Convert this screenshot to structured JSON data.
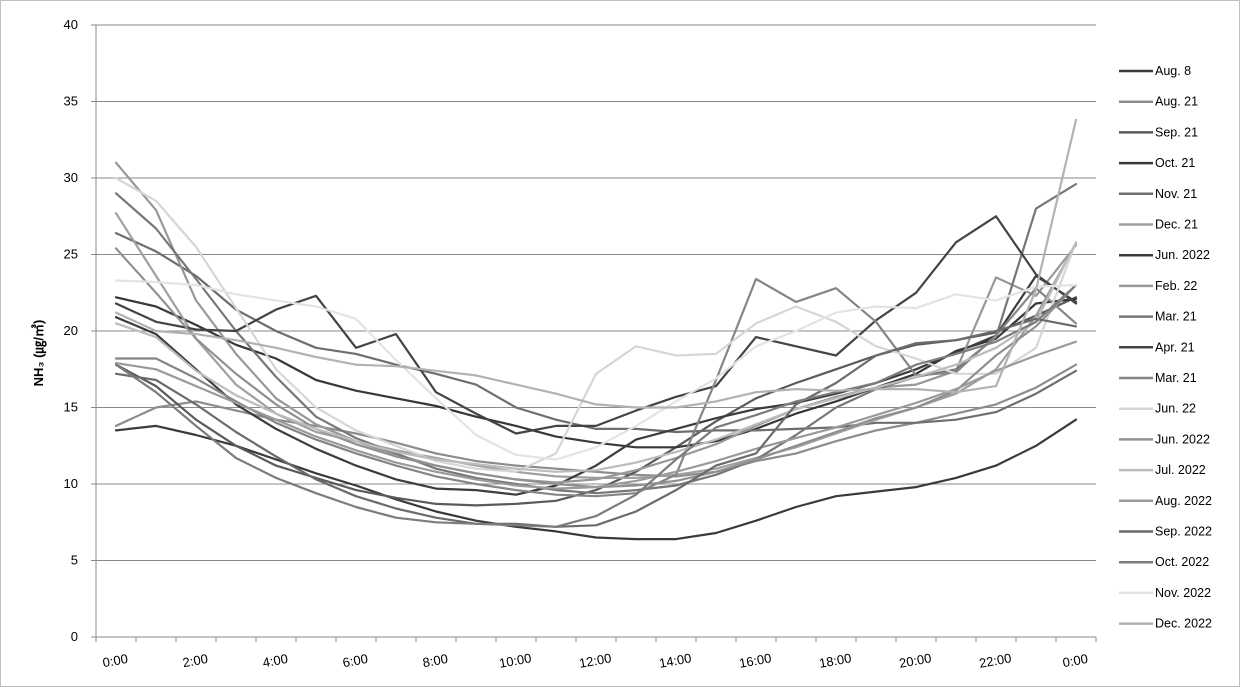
{
  "chart_data": {
    "type": "line",
    "title": "",
    "xlabel": "",
    "ylabel": "NH₃ (㎍/㎥)",
    "ylim": [
      0,
      40
    ],
    "y_ticks": [
      "0",
      "5",
      "10",
      "15",
      "20",
      "25",
      "30",
      "35",
      "40"
    ],
    "x_tick_labels": [
      "0:00",
      "2:00",
      "4:00",
      "6:00",
      "8:00",
      "10:00",
      "12:00",
      "14:00",
      "16:00",
      "18:00",
      "20:00",
      "22:00",
      "0:00"
    ],
    "x": [
      "0:00",
      "1:00",
      "2:00",
      "3:00",
      "4:00",
      "5:00",
      "6:00",
      "7:00",
      "8:00",
      "9:00",
      "10:00",
      "11:00",
      "12:00",
      "13:00",
      "14:00",
      "15:00",
      "16:00",
      "17:00",
      "18:00",
      "19:00",
      "20:00",
      "21:00",
      "22:00",
      "23:00",
      "0:00"
    ],
    "grid": "horizontal",
    "legend_position": "right",
    "series": [
      {
        "name": "Aug. 8",
        "color": "#3a3a3a",
        "values": [
          13.5,
          13.8,
          13.2,
          12.5,
          11.6,
          10.7,
          9.9,
          9.0,
          8.2,
          7.6,
          7.2,
          6.9,
          6.5,
          6.4,
          6.4,
          6.8,
          7.6,
          8.5,
          9.2,
          9.5,
          9.8,
          10.4,
          11.2,
          12.5,
          14.2
        ]
      },
      {
        "name": "Aug. 21",
        "color": "#8c8c8c",
        "values": [
          13.8,
          15.0,
          15.4,
          14.8,
          14.2,
          13.8,
          13.3,
          12.7,
          12.0,
          11.5,
          11.2,
          11.0,
          10.8,
          10.6,
          10.5,
          10.8,
          11.5,
          12.0,
          12.8,
          13.5,
          14.0,
          14.6,
          15.2,
          16.3,
          17.8
        ]
      },
      {
        "name": "Sep. 21",
        "color": "#5a5a5a",
        "values": [
          17.8,
          16.4,
          14.2,
          12.5,
          11.2,
          10.4,
          9.6,
          9.1,
          8.7,
          8.6,
          8.7,
          8.9,
          9.6,
          10.8,
          12.4,
          14.1,
          15.6,
          16.6,
          17.5,
          18.4,
          19.1,
          19.4,
          19.9,
          21.0,
          22.2
        ]
      },
      {
        "name": "Oct. 21",
        "color": "#383838",
        "values": [
          22.2,
          21.6,
          20.4,
          19.1,
          18.2,
          16.8,
          16.1,
          15.6,
          15.1,
          14.4,
          13.8,
          13.1,
          12.7,
          12.4,
          12.4,
          12.8,
          13.6,
          14.6,
          15.4,
          16.3,
          17.2,
          18.7,
          19.5,
          21.8,
          22.1
        ]
      },
      {
        "name": "Nov. 21",
        "color": "#6e6e6e",
        "values": [
          26.4,
          25.2,
          23.6,
          21.4,
          20.0,
          18.9,
          18.5,
          17.8,
          17.2,
          16.5,
          15.0,
          14.2,
          13.6,
          13.6,
          13.4,
          13.5,
          13.5,
          13.6,
          13.7,
          14.0,
          14.0,
          14.2,
          14.7,
          15.9,
          17.4
        ]
      },
      {
        "name": "Dec. 21",
        "color": "#a0a0a0",
        "values": [
          27.7,
          23.6,
          19.5,
          16.5,
          14.6,
          13.4,
          12.8,
          12.2,
          11.7,
          11.2,
          10.8,
          10.5,
          10.4,
          10.4,
          10.6,
          11.0,
          11.7,
          12.4,
          13.3,
          14.2,
          15.0,
          15.9,
          17.5,
          21.0,
          25.7
        ]
      },
      {
        "name": "Jun. 2022",
        "color": "#3c3c3c",
        "values": [
          20.9,
          19.8,
          17.5,
          15.2,
          13.6,
          12.3,
          11.2,
          10.3,
          9.7,
          9.6,
          9.3,
          9.9,
          11.2,
          12.9,
          13.6,
          14.3,
          14.9,
          15.3,
          15.9,
          16.6,
          17.5,
          18.6,
          19.7,
          23.6,
          21.9
        ]
      },
      {
        "name": "Feb. 22",
        "color": "#989898",
        "values": [
          31.0,
          27.9,
          22.0,
          18.5,
          15.6,
          13.9,
          12.8,
          11.9,
          11.2,
          10.7,
          10.3,
          10.1,
          10.3,
          10.9,
          11.7,
          12.6,
          13.8,
          14.9,
          15.7,
          16.3,
          16.5,
          17.4,
          23.5,
          22.3,
          25.6
        ]
      },
      {
        "name": "Mar. 21",
        "color": "#777777",
        "values": [
          29.0,
          26.7,
          23.4,
          20.0,
          17.0,
          14.4,
          13.0,
          12.0,
          11.0,
          10.4,
          10.0,
          9.6,
          9.4,
          9.6,
          9.9,
          10.6,
          11.6,
          13.2,
          15.0,
          16.2,
          17.0,
          17.5,
          19.6,
          28.0,
          29.6
        ]
      },
      {
        "name": "Apr. 21",
        "color": "#444444",
        "values": [
          21.8,
          20.6,
          20.1,
          20.0,
          21.4,
          22.3,
          18.9,
          19.8,
          16.0,
          14.6,
          13.3,
          13.8,
          13.8,
          14.8,
          15.7,
          16.4,
          19.6,
          19.0,
          18.4,
          20.7,
          22.5,
          25.8,
          27.5,
          23.7,
          21.8
        ]
      },
      {
        "name": "Mar. 21",
        "color": "#858585",
        "values": [
          18.2,
          18.2,
          16.9,
          15.4,
          14.0,
          12.9,
          12.0,
          11.2,
          10.5,
          10.0,
          9.6,
          9.3,
          9.2,
          9.4,
          10.6,
          16.8,
          23.4,
          21.9,
          22.8,
          20.6,
          17.1,
          17.3,
          19.7,
          22.8,
          20.5
        ]
      },
      {
        "name": "Jun. 22",
        "color": "#d6d6d6",
        "values": [
          30.0,
          28.5,
          25.5,
          21.5,
          17.5,
          15.0,
          13.5,
          12.5,
          11.5,
          11.0,
          10.8,
          12.0,
          17.2,
          19.0,
          18.4,
          18.5,
          20.5,
          21.6,
          20.6,
          19.0,
          18.2,
          17.2,
          17.2,
          18.9,
          25.8
        ]
      },
      {
        "name": "Jun. 2022",
        "color": "#909090",
        "values": [
          25.4,
          22.5,
          19.5,
          17.2,
          15.2,
          13.6,
          12.6,
          11.8,
          11.2,
          10.7,
          10.3,
          10.0,
          9.8,
          9.9,
          10.2,
          10.8,
          11.6,
          12.5,
          13.4,
          14.3,
          15.0,
          16.1,
          18.4,
          20.3,
          23.0
        ]
      },
      {
        "name": "Jul. 2022",
        "color": "#bcbcbc",
        "values": [
          20.5,
          19.6,
          17.4,
          15.8,
          14.6,
          13.6,
          12.8,
          12.1,
          11.6,
          11.3,
          11.0,
          10.8,
          10.9,
          11.4,
          12.1,
          12.9,
          13.9,
          14.9,
          15.6,
          16.3,
          17.0,
          17.8,
          18.9,
          20.6,
          25.8
        ]
      },
      {
        "name": "Aug. 2022",
        "color": "#9a9a9a",
        "values": [
          17.9,
          17.5,
          16.4,
          15.3,
          14.2,
          13.1,
          12.2,
          11.4,
          10.8,
          10.3,
          9.9,
          9.7,
          9.8,
          10.2,
          10.8,
          11.5,
          12.3,
          13.0,
          13.7,
          14.5,
          15.3,
          16.2,
          17.4,
          18.4,
          19.3
        ]
      },
      {
        "name": "Sep. 2022",
        "color": "#6b6b6b",
        "values": [
          17.2,
          16.8,
          15.2,
          13.4,
          11.8,
          10.3,
          9.2,
          8.4,
          7.8,
          7.4,
          7.4,
          7.2,
          7.3,
          8.2,
          9.6,
          11.2,
          12.0,
          15.2,
          16.6,
          18.4,
          19.2,
          19.4,
          20.0,
          20.8,
          20.3
        ]
      },
      {
        "name": "Oct. 2022",
        "color": "#7c7c7c",
        "values": [
          17.8,
          16.0,
          13.8,
          11.7,
          10.4,
          9.4,
          8.5,
          7.8,
          7.5,
          7.4,
          7.3,
          7.2,
          7.9,
          9.3,
          11.6,
          13.7,
          14.5,
          15.4,
          16.0,
          16.6,
          17.8,
          18.5,
          19.3,
          20.6,
          23.0
        ]
      },
      {
        "name": "Nov. 2022",
        "color": "#e3e3e3",
        "values": [
          23.3,
          23.2,
          23.0,
          22.4,
          22.0,
          21.6,
          20.8,
          18.1,
          15.6,
          13.2,
          11.9,
          11.6,
          12.4,
          13.8,
          15.4,
          16.9,
          19.0,
          20.0,
          21.2,
          21.6,
          21.5,
          22.4,
          22.0,
          22.9,
          23.0
        ]
      },
      {
        "name": "Dec. 2022",
        "color": "#b2b2b2",
        "values": [
          21.2,
          20.0,
          19.8,
          19.4,
          18.9,
          18.3,
          17.8,
          17.7,
          17.4,
          17.1,
          16.5,
          15.9,
          15.2,
          15.0,
          15.0,
          15.4,
          16.0,
          16.2,
          16.1,
          16.2,
          16.2,
          16.0,
          16.4,
          22.7,
          33.8
        ]
      }
    ]
  }
}
